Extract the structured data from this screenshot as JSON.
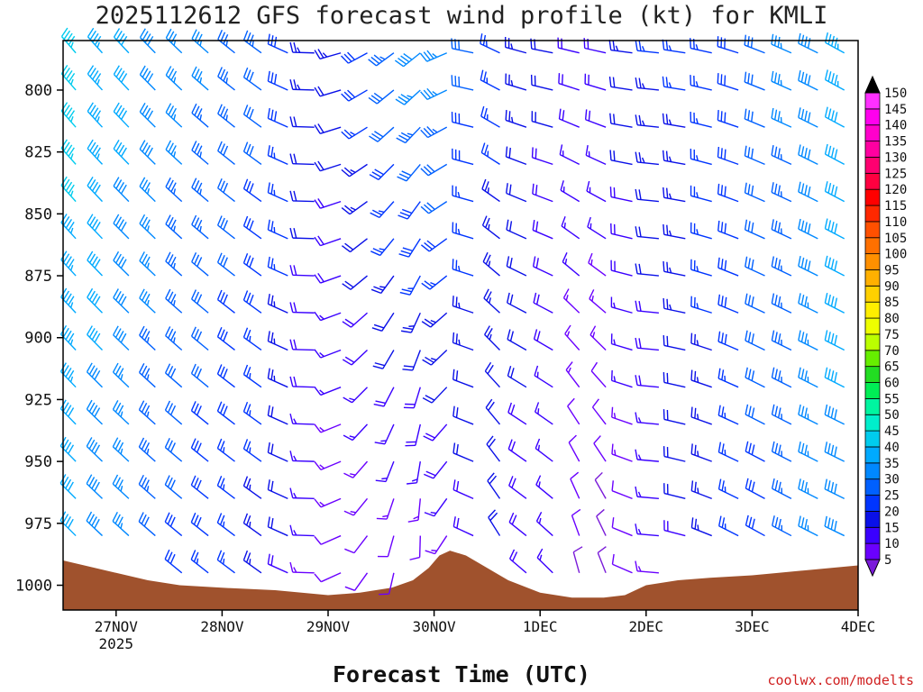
{
  "title": "2025112612 GFS forecast wind profile (kt) for KMLI",
  "xlabel": "Forecast Time (UTC)",
  "credit": "coolwx.com/modelts",
  "chart_data": {
    "type": "wind-barb-profile",
    "yaxis": {
      "ticks": [
        800,
        825,
        850,
        875,
        900,
        925,
        950,
        975,
        1000
      ],
      "range": [
        780,
        1010
      ]
    },
    "xaxis": {
      "ticks": [
        "27NOV",
        "28NOV",
        "29NOV",
        "30NOV",
        "1DEC",
        "2DEC",
        "3DEC",
        "4DEC"
      ],
      "year_label": "2025",
      "range_days": [
        -0.5,
        7.0
      ]
    },
    "terrain_color": "#a0522d",
    "surface_pressure": [
      [
        -0.5,
        990
      ],
      [
        -0.3,
        992
      ],
      [
        0.0,
        995
      ],
      [
        0.3,
        998
      ],
      [
        0.6,
        1000
      ],
      [
        1.0,
        1001
      ],
      [
        1.5,
        1002
      ],
      [
        2.0,
        1004
      ],
      [
        2.3,
        1003
      ],
      [
        2.6,
        1001
      ],
      [
        2.8,
        998
      ],
      [
        2.95,
        993
      ],
      [
        3.05,
        988
      ],
      [
        3.15,
        986
      ],
      [
        3.3,
        988
      ],
      [
        3.5,
        993
      ],
      [
        3.7,
        998
      ],
      [
        4.0,
        1003
      ],
      [
        4.3,
        1005
      ],
      [
        4.6,
        1005
      ],
      [
        4.8,
        1004
      ],
      [
        5.0,
        1000
      ],
      [
        5.3,
        998
      ],
      [
        5.6,
        997
      ],
      [
        6.0,
        996
      ],
      [
        6.5,
        994
      ],
      [
        7.0,
        992
      ]
    ],
    "colorbar": {
      "levels": [
        5,
        10,
        15,
        20,
        25,
        30,
        35,
        40,
        45,
        50,
        55,
        60,
        65,
        70,
        75,
        80,
        85,
        90,
        95,
        100,
        105,
        110,
        115,
        120,
        125,
        130,
        135,
        140,
        145,
        150
      ],
      "colors": [
        "#7a1bd9",
        "#6a00ff",
        "#3a00ff",
        "#0a10e8",
        "#0035ff",
        "#0060ff",
        "#0088ff",
        "#00aaff",
        "#00ccee",
        "#00eecc",
        "#00f5a0",
        "#00ee55",
        "#22dd22",
        "#66ee00",
        "#bbff00",
        "#eeff00",
        "#ffee00",
        "#ffd000",
        "#ffb000",
        "#ff9000",
        "#ff7000",
        "#ff5000",
        "#ff2800",
        "#ff0000",
        "#ff0040",
        "#ff0070",
        "#ff00a0",
        "#ff00cc",
        "#ff00ee",
        "#ff30ff"
      ]
    },
    "wind_keyframes": [
      {
        "t": -0.5,
        "dir_low": 315,
        "spd_low": 42,
        "dir_high": 320,
        "spd_high": 48
      },
      {
        "t": 0.5,
        "dir_low": 310,
        "spd_low": 30,
        "dir_high": 315,
        "spd_high": 38
      },
      {
        "t": 1.5,
        "dir_low": 305,
        "spd_low": 22,
        "dir_high": 305,
        "spd_high": 32
      },
      {
        "t": 2.0,
        "dir_low": 260,
        "spd_low": 12,
        "dir_high": 260,
        "spd_high": 20
      },
      {
        "t": 2.5,
        "dir_low": 200,
        "spd_low": 10,
        "dir_high": 235,
        "spd_high": 32
      },
      {
        "t": 3.0,
        "dir_low": 170,
        "spd_low": 10,
        "dir_high": 230,
        "spd_high": 40
      },
      {
        "t": 3.5,
        "dir_low": 340,
        "spd_low": 20,
        "dir_high": 300,
        "spd_high": 28
      },
      {
        "t": 4.0,
        "dir_low": 300,
        "spd_low": 18,
        "dir_high": 280,
        "spd_high": 22
      },
      {
        "t": 4.5,
        "dir_low": 0,
        "spd_low": 7,
        "dir_high": 285,
        "spd_high": 18
      },
      {
        "t": 5.0,
        "dir_low": 270,
        "spd_low": 12,
        "dir_high": 275,
        "spd_high": 25
      },
      {
        "t": 5.5,
        "dir_low": 290,
        "spd_low": 22,
        "dir_high": 280,
        "spd_high": 26
      },
      {
        "t": 6.0,
        "dir_low": 300,
        "spd_low": 28,
        "dir_high": 290,
        "spd_high": 30
      },
      {
        "t": 7.0,
        "dir_low": 295,
        "spd_low": 40,
        "dir_high": 300,
        "spd_high": 45
      }
    ],
    "barb_levels": [
      785,
      800,
      815,
      830,
      845,
      860,
      875,
      890,
      905,
      920,
      935,
      950,
      965,
      980,
      995
    ],
    "barb_interval_hours": 6
  }
}
